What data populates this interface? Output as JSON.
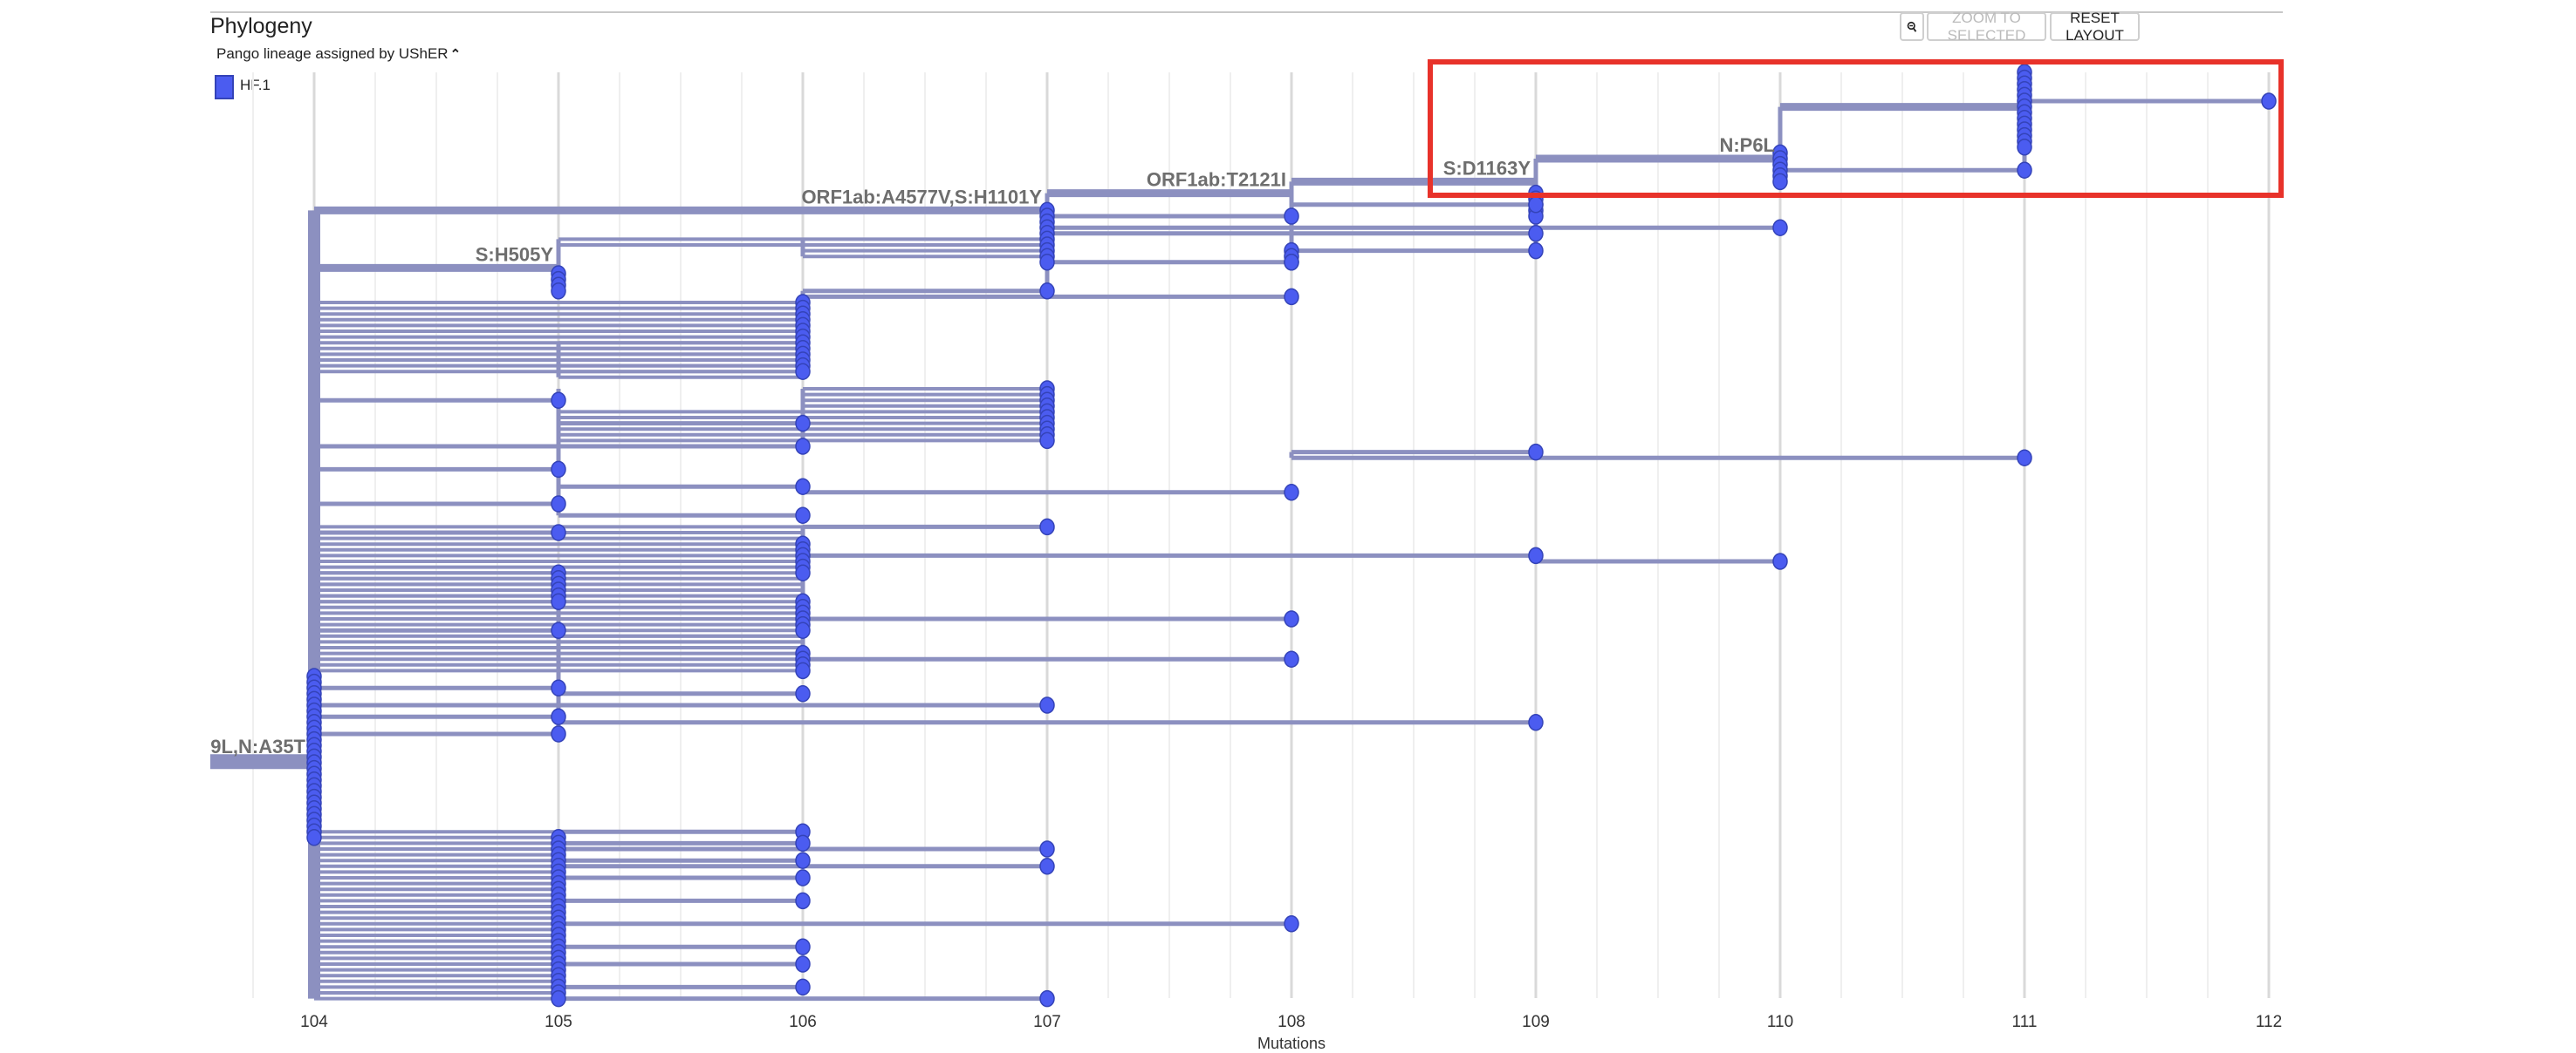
{
  "header": {
    "title": "Phylogeny",
    "color_by": "Pango lineage assigned by UShER",
    "legend": [
      {
        "label": "HF.1",
        "color": "#4b5cf0"
      }
    ],
    "buttons": {
      "zoom_out_icon": "magnifier-minus-icon",
      "zoom_to_selected": "ZOOM TO SELECTED",
      "reset_layout": "RESET LAYOUT"
    }
  },
  "chart_data": {
    "type": "phylogenetic-tree",
    "xlabel": "Mutations",
    "xlim": [
      103.75,
      112
    ],
    "xticks": [
      "104",
      "105",
      "106",
      "107",
      "108",
      "109",
      "110",
      "111",
      "112"
    ],
    "colors": {
      "branch": "#8c90c0",
      "tip": "#4b5cf0",
      "tip_stroke": "#3443b8",
      "label": "#6e6e6e",
      "highlight_box": "#e8322a"
    },
    "root": {
      "label": "9L,N:A35T",
      "to": 104,
      "row": 118
    },
    "node_labels": [
      {
        "text": "ORF1ab:A4577V,S:H1101Y",
        "at": 107,
        "row": 24
      },
      {
        "text": "ORF1ab:T2121I",
        "at": 108,
        "row": 21
      },
      {
        "text": "S:D1163Y",
        "at": 109,
        "row": 19
      },
      {
        "text": "N:P6L",
        "at": 110,
        "row": 15
      },
      {
        "text": "S:H505Y",
        "at": 105,
        "row": 34
      }
    ],
    "verticals": [
      [
        104,
        24,
        161
      ],
      [
        107,
        21,
        38
      ],
      [
        108,
        19,
        33
      ],
      [
        109,
        15,
        31
      ],
      [
        110,
        6,
        19
      ],
      [
        111,
        0,
        17
      ],
      [
        105,
        29,
        38
      ],
      [
        106,
        29,
        32
      ],
      [
        106,
        38,
        52
      ],
      [
        105,
        47,
        53
      ],
      [
        105,
        55,
        77
      ],
      [
        106,
        55,
        64
      ],
      [
        108,
        66,
        67
      ],
      [
        106,
        79,
        104
      ],
      [
        109,
        84,
        85
      ],
      [
        105,
        87,
        115
      ],
      [
        105,
        132,
        161
      ],
      [
        104,
        118,
        118
      ]
    ],
    "main_edges": [
      [
        104,
        107,
        24
      ],
      [
        107,
        108,
        21
      ],
      [
        108,
        109,
        19
      ],
      [
        109,
        110,
        15
      ],
      [
        110,
        111,
        6
      ],
      [
        104,
        105,
        34
      ]
    ],
    "bundles": [
      [
        104,
        105,
        132,
        161
      ],
      [
        106,
        107,
        29,
        32
      ],
      [
        105,
        106,
        29,
        30
      ],
      [
        104,
        106,
        40,
        52
      ],
      [
        105,
        106,
        47,
        53
      ],
      [
        106,
        107,
        55,
        58
      ],
      [
        105,
        107,
        59,
        64
      ],
      [
        104,
        106,
        79,
        104
      ],
      [
        104,
        105,
        87,
        92
      ],
      [
        105,
        106,
        98,
        100
      ]
    ],
    "tips": [
      [
        111,
        112,
        5
      ],
      [
        110,
        111,
        17
      ],
      [
        108,
        109,
        23
      ],
      [
        107,
        108,
        25
      ],
      [
        107,
        110,
        27
      ],
      [
        107,
        109,
        28
      ],
      [
        108,
        109,
        31
      ],
      [
        107,
        108,
        33
      ],
      [
        106,
        107,
        38
      ],
      [
        106,
        108,
        39
      ],
      [
        104,
        105,
        57
      ],
      [
        105,
        106,
        61
      ],
      [
        104,
        106,
        65
      ],
      [
        108,
        109,
        66
      ],
      [
        108,
        111,
        67
      ],
      [
        104,
        105,
        69
      ],
      [
        105,
        106,
        72
      ],
      [
        106,
        108,
        73
      ],
      [
        104,
        105,
        75
      ],
      [
        105,
        106,
        77
      ],
      [
        106,
        107,
        79
      ],
      [
        104,
        105,
        80
      ],
      [
        106,
        109,
        84
      ],
      [
        109,
        110,
        85
      ],
      [
        106,
        108,
        95
      ],
      [
        104,
        105,
        97
      ],
      [
        106,
        108,
        102
      ],
      [
        104,
        105,
        107
      ],
      [
        105,
        106,
        108
      ],
      [
        104,
        107,
        110
      ],
      [
        104,
        105,
        112
      ],
      [
        105,
        109,
        113
      ],
      [
        104,
        105,
        115
      ],
      [
        105,
        106,
        132
      ],
      [
        105,
        106,
        134
      ],
      [
        105,
        107,
        135
      ],
      [
        105,
        106,
        137
      ],
      [
        105,
        107,
        138
      ],
      [
        105,
        106,
        140
      ],
      [
        105,
        106,
        144
      ],
      [
        105,
        108,
        148
      ],
      [
        105,
        106,
        152
      ],
      [
        105,
        106,
        155
      ],
      [
        105,
        106,
        159
      ],
      [
        105,
        107,
        161
      ]
    ],
    "tip_clusters": [
      [
        111,
        0,
        13
      ],
      [
        110,
        14,
        19
      ],
      [
        109,
        21,
        25
      ],
      [
        107,
        24,
        33
      ],
      [
        108,
        31,
        33
      ],
      [
        105,
        35,
        38
      ],
      [
        106,
        40,
        52
      ],
      [
        107,
        55,
        64
      ],
      [
        104,
        105,
        133
      ],
      [
        105,
        133,
        161
      ],
      [
        106,
        82,
        87
      ],
      [
        105,
        87,
        92
      ],
      [
        106,
        92,
        97
      ],
      [
        106,
        101,
        104
      ]
    ],
    "highlight": {
      "from": 108.55,
      "to": 112,
      "rows": [
        -2,
        21
      ]
    }
  }
}
